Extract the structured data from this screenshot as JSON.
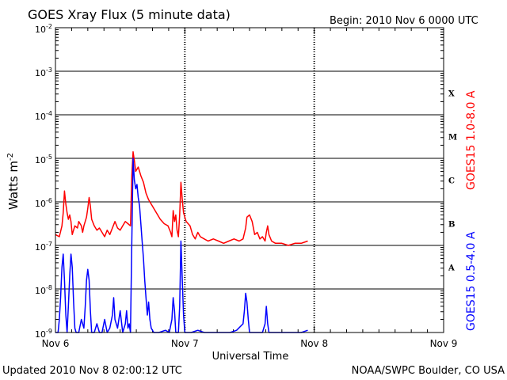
{
  "chart_data": {
    "type": "line",
    "title": "GOES Xray Flux (5 minute data)",
    "begin_label": "Begin:  2010 Nov 6 0000 UTC",
    "ylabel": "Watts m",
    "ylabel_sup": "-2",
    "xlabel": "Universal Time",
    "y_scale": "log",
    "ylim_exponents": [
      -9,
      -2
    ],
    "y_tick_exponents": [
      -9,
      -8,
      -7,
      -6,
      -5,
      -4,
      -3,
      -2
    ],
    "y_tick_base": "10",
    "x_ticks": [
      "Nov 6",
      "Nov 7",
      "Nov 8",
      "Nov 9"
    ],
    "xlim_days": [
      0,
      3
    ],
    "flare_classes": [
      {
        "label": "X",
        "exp": -4
      },
      {
        "label": "M",
        "exp": -5
      },
      {
        "label": "C",
        "exp": -6
      },
      {
        "label": "B",
        "exp": -7
      },
      {
        "label": "A",
        "exp": -8
      }
    ],
    "grid": true,
    "series": [
      {
        "name": "GOES15 1.0-8.0 A",
        "color": "#ff0000",
        "points": [
          [
            0.0,
            -6.75
          ],
          [
            0.03,
            -6.8
          ],
          [
            0.05,
            -6.55
          ],
          [
            0.06,
            -6.25
          ],
          [
            0.07,
            -5.75
          ],
          [
            0.08,
            -6.05
          ],
          [
            0.09,
            -6.25
          ],
          [
            0.1,
            -6.4
          ],
          [
            0.11,
            -6.3
          ],
          [
            0.12,
            -6.45
          ],
          [
            0.13,
            -6.75
          ],
          [
            0.15,
            -6.55
          ],
          [
            0.17,
            -6.6
          ],
          [
            0.18,
            -6.45
          ],
          [
            0.2,
            -6.55
          ],
          [
            0.21,
            -6.7
          ],
          [
            0.22,
            -6.55
          ],
          [
            0.24,
            -6.35
          ],
          [
            0.25,
            -6.15
          ],
          [
            0.26,
            -5.9
          ],
          [
            0.27,
            -6.1
          ],
          [
            0.28,
            -6.4
          ],
          [
            0.3,
            -6.55
          ],
          [
            0.32,
            -6.65
          ],
          [
            0.34,
            -6.6
          ],
          [
            0.36,
            -6.7
          ],
          [
            0.38,
            -6.8
          ],
          [
            0.4,
            -6.65
          ],
          [
            0.42,
            -6.75
          ],
          [
            0.44,
            -6.6
          ],
          [
            0.46,
            -6.45
          ],
          [
            0.48,
            -6.6
          ],
          [
            0.5,
            -6.65
          ],
          [
            0.52,
            -6.55
          ],
          [
            0.54,
            -6.45
          ],
          [
            0.56,
            -6.5
          ],
          [
            0.58,
            -6.55
          ],
          [
            0.59,
            -5.4
          ],
          [
            0.6,
            -4.85
          ],
          [
            0.61,
            -5.05
          ],
          [
            0.62,
            -5.3
          ],
          [
            0.64,
            -5.2
          ],
          [
            0.66,
            -5.4
          ],
          [
            0.68,
            -5.55
          ],
          [
            0.7,
            -5.8
          ],
          [
            0.72,
            -5.95
          ],
          [
            0.75,
            -6.1
          ],
          [
            0.78,
            -6.25
          ],
          [
            0.81,
            -6.4
          ],
          [
            0.84,
            -6.5
          ],
          [
            0.87,
            -6.55
          ],
          [
            0.89,
            -6.7
          ],
          [
            0.9,
            -6.8
          ],
          [
            0.91,
            -6.2
          ],
          [
            0.92,
            -6.45
          ],
          [
            0.93,
            -6.3
          ],
          [
            0.94,
            -6.65
          ],
          [
            0.95,
            -6.8
          ],
          [
            0.96,
            -6.3
          ],
          [
            0.97,
            -5.55
          ],
          [
            0.98,
            -5.95
          ],
          [
            0.99,
            -6.25
          ],
          [
            1.01,
            -6.45
          ],
          [
            1.04,
            -6.55
          ],
          [
            1.06,
            -6.75
          ],
          [
            1.08,
            -6.85
          ],
          [
            1.1,
            -6.7
          ],
          [
            1.12,
            -6.8
          ],
          [
            1.15,
            -6.85
          ],
          [
            1.18,
            -6.9
          ],
          [
            1.22,
            -6.85
          ],
          [
            1.26,
            -6.9
          ],
          [
            1.3,
            -6.95
          ],
          [
            1.34,
            -6.9
          ],
          [
            1.38,
            -6.85
          ],
          [
            1.42,
            -6.9
          ],
          [
            1.45,
            -6.85
          ],
          [
            1.47,
            -6.6
          ],
          [
            1.48,
            -6.35
          ],
          [
            1.5,
            -6.3
          ],
          [
            1.52,
            -6.45
          ],
          [
            1.54,
            -6.75
          ],
          [
            1.56,
            -6.7
          ],
          [
            1.58,
            -6.85
          ],
          [
            1.6,
            -6.8
          ],
          [
            1.62,
            -6.9
          ],
          [
            1.63,
            -6.7
          ],
          [
            1.64,
            -6.55
          ],
          [
            1.65,
            -6.75
          ],
          [
            1.67,
            -6.9
          ],
          [
            1.7,
            -6.95
          ],
          [
            1.75,
            -6.95
          ],
          [
            1.8,
            -7.0
          ],
          [
            1.85,
            -6.95
          ],
          [
            1.9,
            -6.95
          ],
          [
            1.95,
            -6.9
          ]
        ]
      },
      {
        "name": "GOES15 0.5-4.0 A",
        "color": "#0000ff",
        "points": [
          [
            0.0,
            -9.0
          ],
          [
            0.02,
            -9.0
          ],
          [
            0.03,
            -8.7
          ],
          [
            0.04,
            -8.2
          ],
          [
            0.05,
            -7.5
          ],
          [
            0.06,
            -7.2
          ],
          [
            0.07,
            -7.8
          ],
          [
            0.08,
            -8.6
          ],
          [
            0.09,
            -9.0
          ],
          [
            0.1,
            -8.4
          ],
          [
            0.11,
            -7.7
          ],
          [
            0.12,
            -7.2
          ],
          [
            0.13,
            -7.5
          ],
          [
            0.14,
            -8.3
          ],
          [
            0.15,
            -8.9
          ],
          [
            0.16,
            -9.0
          ],
          [
            0.18,
            -9.0
          ],
          [
            0.2,
            -8.7
          ],
          [
            0.22,
            -8.9
          ],
          [
            0.23,
            -8.4
          ],
          [
            0.24,
            -7.8
          ],
          [
            0.25,
            -7.55
          ],
          [
            0.26,
            -7.8
          ],
          [
            0.27,
            -8.5
          ],
          [
            0.28,
            -9.0
          ],
          [
            0.3,
            -9.0
          ],
          [
            0.32,
            -8.8
          ],
          [
            0.34,
            -9.0
          ],
          [
            0.36,
            -9.0
          ],
          [
            0.38,
            -8.7
          ],
          [
            0.4,
            -9.0
          ],
          [
            0.42,
            -8.9
          ],
          [
            0.44,
            -8.6
          ],
          [
            0.45,
            -8.2
          ],
          [
            0.46,
            -8.7
          ],
          [
            0.48,
            -8.9
          ],
          [
            0.5,
            -8.5
          ],
          [
            0.52,
            -9.0
          ],
          [
            0.54,
            -8.8
          ],
          [
            0.55,
            -8.5
          ],
          [
            0.56,
            -8.9
          ],
          [
            0.57,
            -8.8
          ],
          [
            0.58,
            -9.0
          ],
          [
            0.59,
            -6.9
          ],
          [
            0.6,
            -5.0
          ],
          [
            0.61,
            -5.5
          ],
          [
            0.62,
            -5.7
          ],
          [
            0.63,
            -5.6
          ],
          [
            0.64,
            -5.9
          ],
          [
            0.65,
            -6.1
          ],
          [
            0.66,
            -6.5
          ],
          [
            0.67,
            -6.9
          ],
          [
            0.68,
            -7.3
          ],
          [
            0.69,
            -7.8
          ],
          [
            0.7,
            -8.2
          ],
          [
            0.71,
            -8.6
          ],
          [
            0.72,
            -8.3
          ],
          [
            0.73,
            -8.7
          ],
          [
            0.74,
            -8.9
          ],
          [
            0.76,
            -9.0
          ],
          [
            0.8,
            -9.0
          ],
          [
            0.85,
            -8.95
          ],
          [
            0.88,
            -9.0
          ],
          [
            0.9,
            -8.7
          ],
          [
            0.91,
            -8.2
          ],
          [
            0.92,
            -8.5
          ],
          [
            0.93,
            -9.0
          ],
          [
            0.95,
            -9.0
          ],
          [
            0.96,
            -8.4
          ],
          [
            0.97,
            -6.9
          ],
          [
            0.98,
            -7.8
          ],
          [
            0.99,
            -8.6
          ],
          [
            1.0,
            -9.0
          ],
          [
            1.05,
            -9.0
          ],
          [
            1.1,
            -8.95
          ],
          [
            1.15,
            -9.0
          ],
          [
            1.2,
            -9.0
          ],
          [
            1.25,
            -9.0
          ],
          [
            1.3,
            -9.0
          ],
          [
            1.35,
            -9.0
          ],
          [
            1.4,
            -8.95
          ],
          [
            1.45,
            -8.8
          ],
          [
            1.46,
            -8.5
          ],
          [
            1.47,
            -8.1
          ],
          [
            1.48,
            -8.3
          ],
          [
            1.49,
            -8.7
          ],
          [
            1.5,
            -9.0
          ],
          [
            1.55,
            -9.0
          ],
          [
            1.6,
            -9.0
          ],
          [
            1.62,
            -8.8
          ],
          [
            1.63,
            -8.4
          ],
          [
            1.64,
            -8.8
          ],
          [
            1.65,
            -9.0
          ],
          [
            1.7,
            -9.0
          ],
          [
            1.8,
            -9.0
          ],
          [
            1.9,
            -9.0
          ],
          [
            1.95,
            -8.95
          ]
        ]
      }
    ]
  },
  "footer": {
    "updated": "Updated 2010 Nov  8 02:00:12 UTC",
    "credit": "NOAA/SWPC Boulder, CO USA"
  }
}
